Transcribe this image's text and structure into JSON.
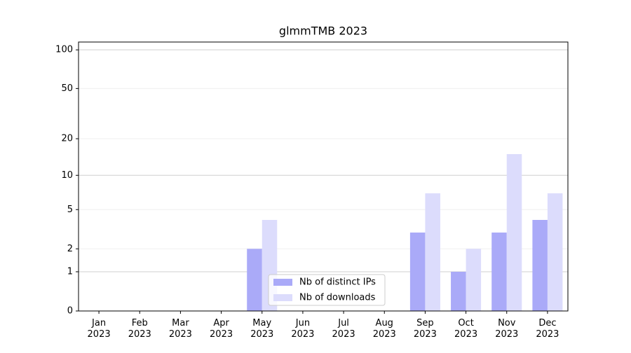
{
  "chart_data": {
    "type": "bar",
    "title": "glmmTMB 2023",
    "categories": [
      "Jan\n2023",
      "Feb\n2023",
      "Mar\n2023",
      "Apr\n2023",
      "May\n2023",
      "Jun\n2023",
      "Jul\n2023",
      "Aug\n2023",
      "Sep\n2023",
      "Oct\n2023",
      "Nov\n2023",
      "Dec\n2023"
    ],
    "series": [
      {
        "name": "Nb of distinct IPs",
        "color": "#aaaaf8",
        "values": [
          0,
          0,
          0,
          0,
          2,
          0,
          0,
          0,
          3,
          1,
          3,
          4
        ]
      },
      {
        "name": "Nb of downloads",
        "color": "#dcdcfc",
        "values": [
          0,
          0,
          0,
          0,
          4,
          0,
          0,
          0,
          7,
          2,
          15,
          7
        ]
      }
    ],
    "yscale": "log1p",
    "ylim": [
      0,
      115
    ],
    "yticks": [
      0,
      1,
      2,
      5,
      10,
      20,
      50,
      100
    ],
    "grid": true,
    "legend": "lower center"
  }
}
